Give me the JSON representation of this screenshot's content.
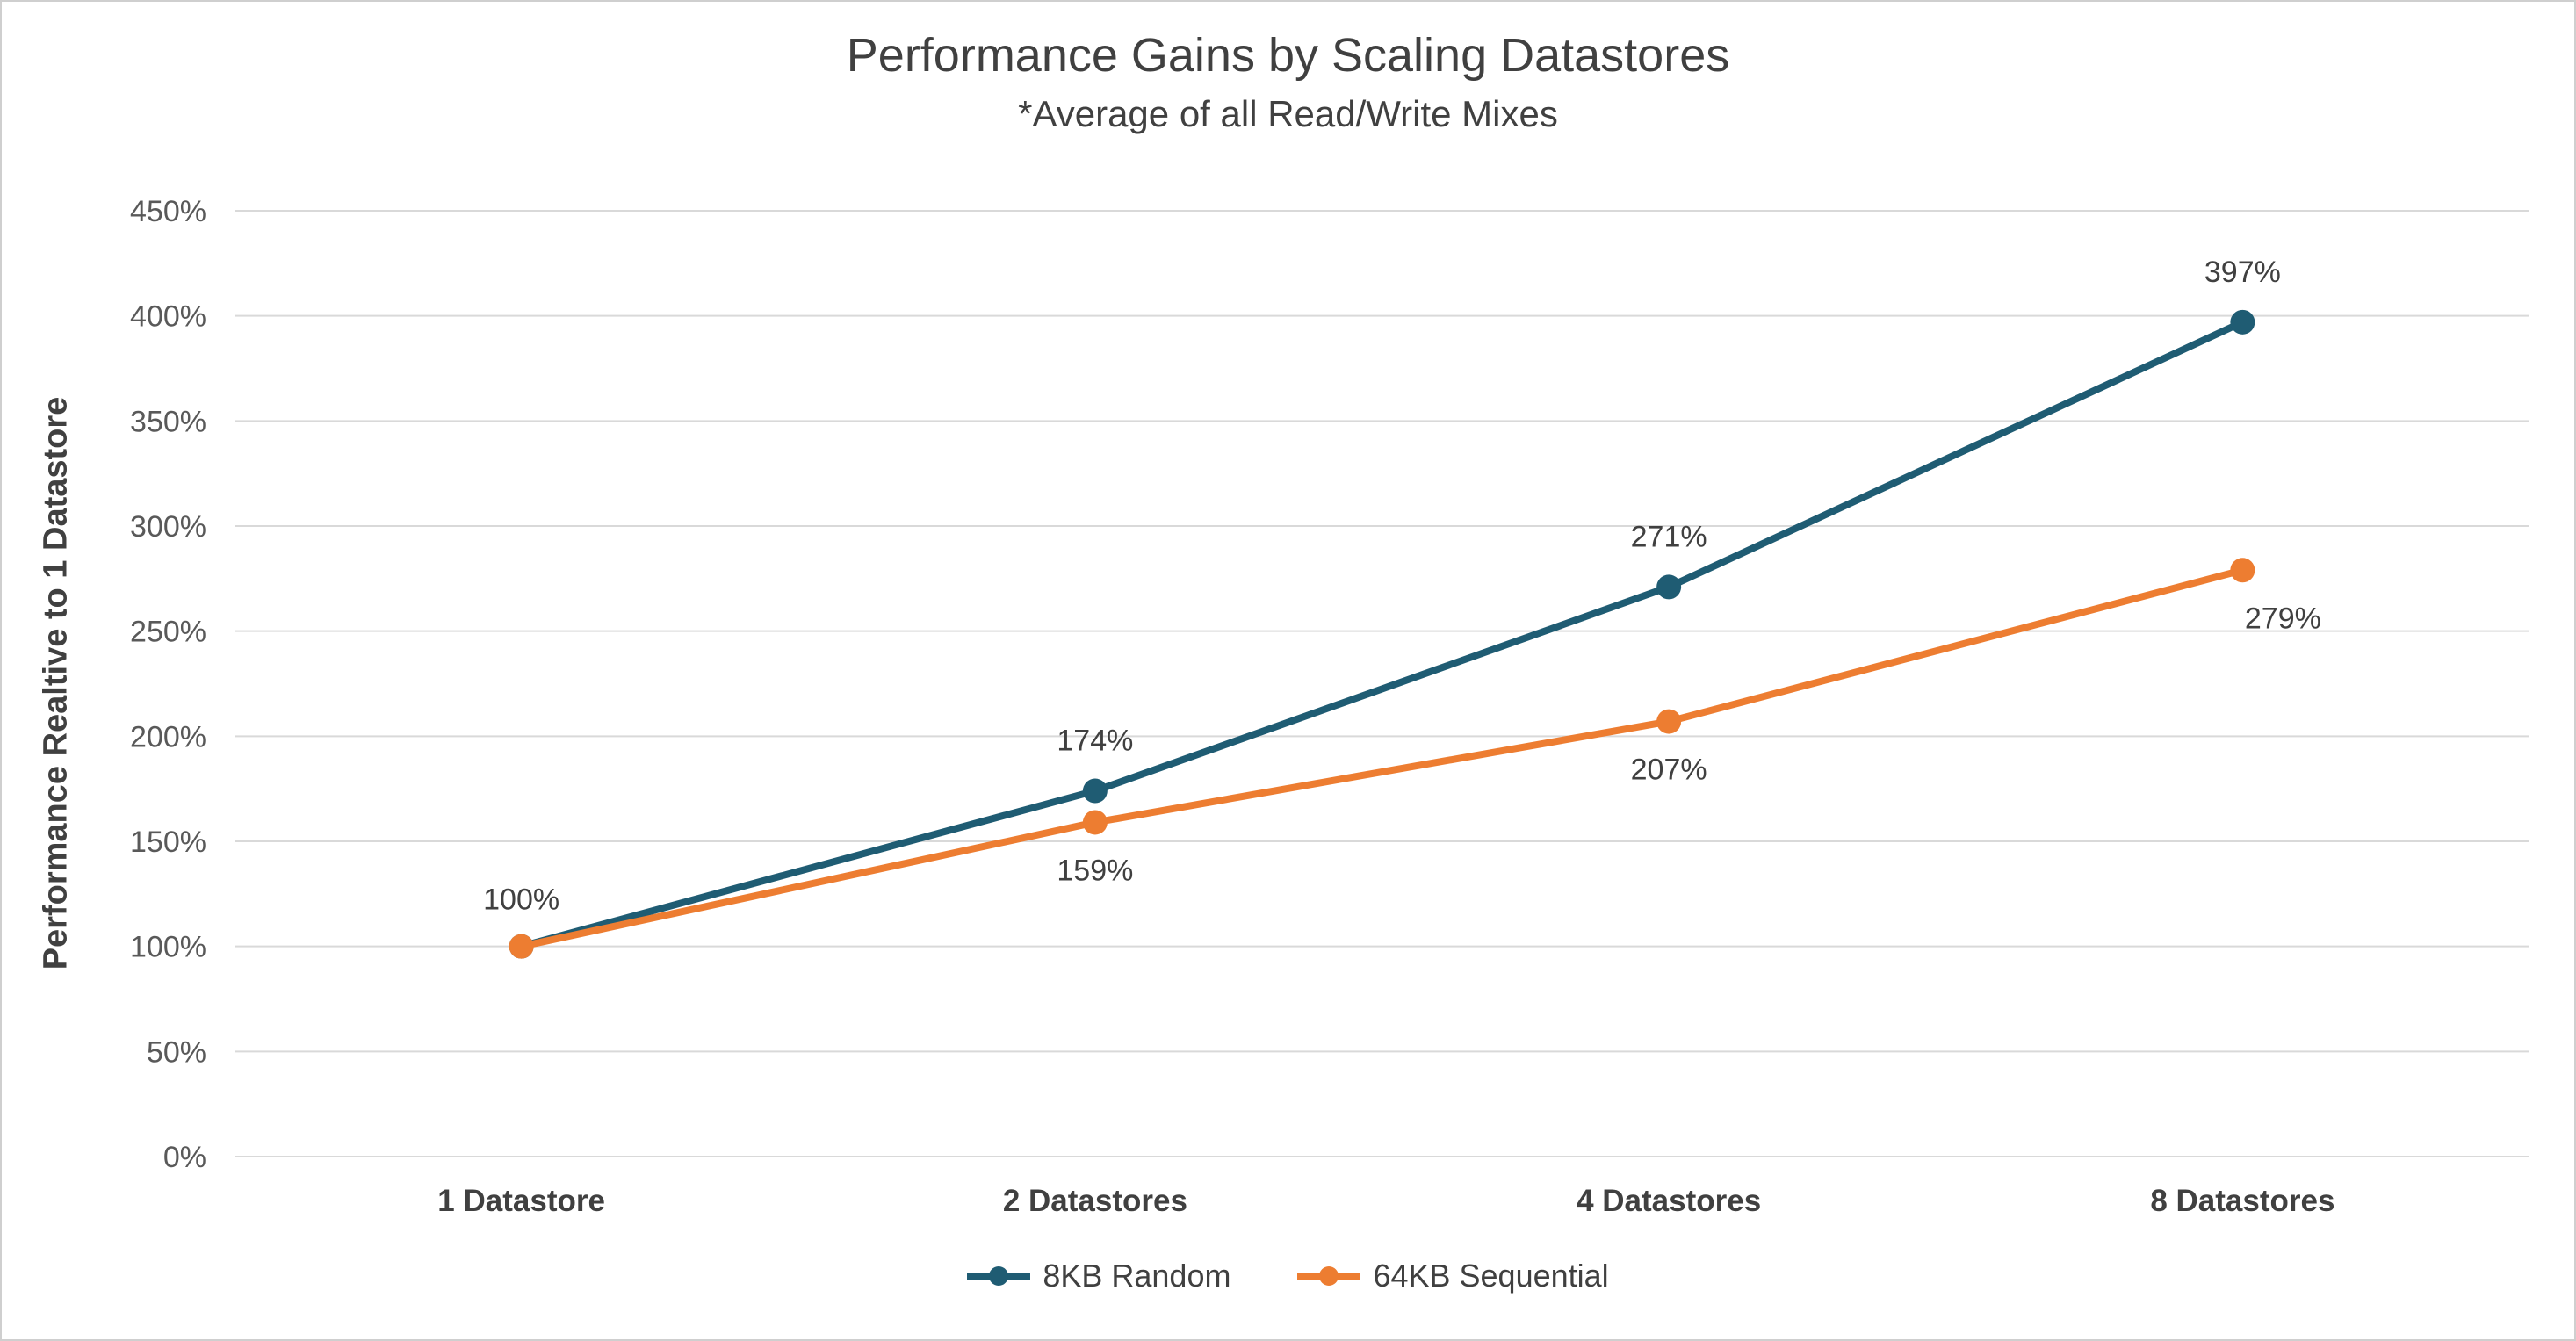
{
  "chart_data": {
    "type": "line",
    "title": "Performance Gains by Scaling Datastores",
    "subtitle": "*Average of all Read/Write Mixes",
    "ylabel": "Performance Realtive to 1 Datastore",
    "categories": [
      "1 Datastore",
      "2 Datastores",
      "4 Datastores",
      "8 Datastores"
    ],
    "series": [
      {
        "name": "8KB Random",
        "color": "#1F5C73",
        "values": [
          100,
          174,
          271,
          397
        ],
        "data_labels": [
          {
            "text": "100%",
            "dx": 0,
            "dy": -42
          },
          {
            "text": "174%",
            "dx": 0,
            "dy": -46
          },
          {
            "text": "271%",
            "dx": 0,
            "dy": -46
          },
          {
            "text": "397%",
            "dx": 0,
            "dy": -46
          }
        ]
      },
      {
        "name": "64KB Sequential",
        "color": "#ED7D31",
        "values": [
          100,
          159,
          207,
          279
        ],
        "data_labels": [
          null,
          {
            "text": "159%",
            "dx": 0,
            "dy": 66
          },
          {
            "text": "207%",
            "dx": 0,
            "dy": 66
          },
          {
            "text": "279%",
            "dx": 46,
            "dy": 66
          }
        ]
      }
    ],
    "ylim": [
      0,
      450
    ],
    "ytick_step": 50,
    "ytick_labels": [
      "0%",
      "50%",
      "100%",
      "150%",
      "200%",
      "250%",
      "300%",
      "350%",
      "400%",
      "450%"
    ],
    "grid": true,
    "legend_position": "bottom",
    "colors": {
      "grid": "#D9D9D9",
      "tick_text": "#595959",
      "category_text": "#404040",
      "data_label_text": "#404040"
    }
  }
}
